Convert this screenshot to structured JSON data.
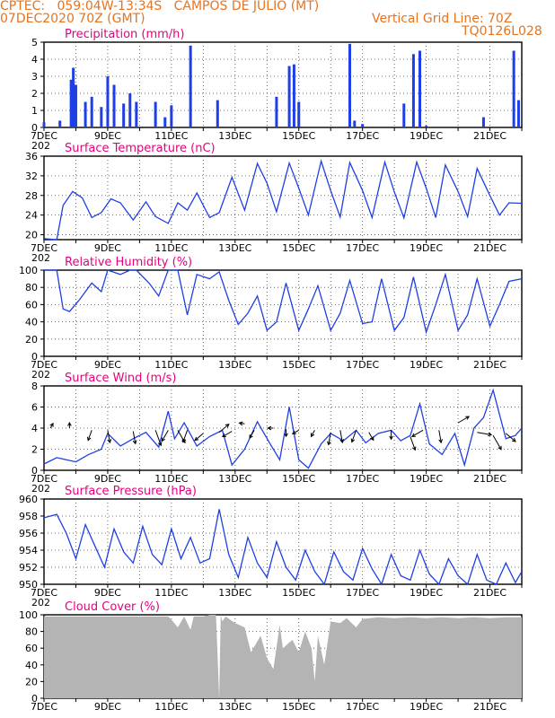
{
  "header": {
    "line1": "CPTEC:   059:04W-13:34S   CAMPOS DE JULIO (MT)",
    "line2": "07DEC2020 70Z (GMT)",
    "grid_note": "Vertical Grid Line: 70Z",
    "code": "TQ0126L028"
  },
  "colors": {
    "header": "#e8731c",
    "title": "#e6007e",
    "series": "#1f3fe6",
    "cloud": "#b4b4b4",
    "axis": "#000000"
  },
  "x_tick_labels": [
    "7DEC",
    "9DEC",
    "11DEC",
    "13DEC",
    "15DEC",
    "17DEC",
    "19DEC",
    "21DEC"
  ],
  "x_range_days": [
    7,
    22
  ],
  "cut_label": "202",
  "chart_data": [
    {
      "type": "bar",
      "title": "Precipitation (mm/h)",
      "ylim": [
        0,
        5
      ],
      "yticks": [
        0,
        1,
        2,
        3,
        4,
        5
      ],
      "x": [
        7.0,
        7.5,
        7.85,
        7.92,
        8.0,
        8.3,
        8.5,
        8.8,
        9.0,
        9.2,
        9.5,
        9.7,
        9.9,
        10.5,
        10.8,
        11.0,
        11.6,
        12.45,
        14.3,
        14.7,
        14.85,
        15.0,
        16.6,
        16.75,
        17.0,
        18.3,
        18.6,
        18.8,
        19.0,
        20.8,
        21.75,
        21.9
      ],
      "values": [
        0.3,
        0.4,
        2.8,
        3.5,
        2.5,
        1.5,
        1.8,
        1.2,
        3.0,
        2.5,
        1.4,
        2.0,
        1.5,
        1.5,
        0.6,
        1.3,
        4.8,
        1.6,
        1.8,
        3.6,
        3.7,
        1.5,
        4.9,
        0.4,
        0.2,
        1.4,
        4.3,
        4.5,
        0.1,
        0.6,
        4.5,
        1.6
      ]
    },
    {
      "type": "line",
      "title": "Surface Temperature (nC)",
      "ylim": [
        19,
        36
      ],
      "yticks": [
        20,
        24,
        28,
        32,
        36
      ],
      "x": [
        7.0,
        7.4,
        7.6,
        7.9,
        8.2,
        8.5,
        8.8,
        9.1,
        9.4,
        9.8,
        10.2,
        10.5,
        10.9,
        11.2,
        11.5,
        11.8,
        12.2,
        12.5,
        12.9,
        13.3,
        13.7,
        14.0,
        14.3,
        14.7,
        15.0,
        15.3,
        15.7,
        16.0,
        16.3,
        16.6,
        17.0,
        17.3,
        17.7,
        18.0,
        18.3,
        18.7,
        19.0,
        19.3,
        19.6,
        20.0,
        20.3,
        20.6,
        21.0,
        21.3,
        21.6,
        22.0
      ],
      "values": [
        19.2,
        19.0,
        26.0,
        28.8,
        27.5,
        23.5,
        24.5,
        27.3,
        26.5,
        23.0,
        26.7,
        23.7,
        22.3,
        26.5,
        25.0,
        28.5,
        23.5,
        24.5,
        31.7,
        25.0,
        34.5,
        30.5,
        24.7,
        34.6,
        29.5,
        24.0,
        35.0,
        29.0,
        23.6,
        34.7,
        29.0,
        23.5,
        34.8,
        28.7,
        23.4,
        34.8,
        29.5,
        23.5,
        34.2,
        28.8,
        23.7,
        33.5,
        28.0,
        24.0,
        26.5,
        26.4
      ]
    },
    {
      "type": "line",
      "title": "Relative Humidity (%)",
      "ylim": [
        0,
        100
      ],
      "yticks": [
        0,
        20,
        40,
        60,
        80,
        100
      ],
      "x": [
        7.0,
        7.4,
        7.6,
        7.8,
        8.1,
        8.5,
        8.8,
        9.0,
        9.4,
        9.7,
        9.9,
        10.3,
        10.6,
        10.9,
        11.2,
        11.5,
        11.8,
        12.2,
        12.5,
        12.8,
        13.1,
        13.4,
        13.7,
        14.0,
        14.3,
        14.6,
        15.0,
        15.3,
        15.6,
        16.0,
        16.3,
        16.6,
        17.0,
        17.3,
        17.6,
        18.0,
        18.3,
        18.6,
        19.0,
        19.3,
        19.6,
        20.0,
        20.3,
        20.6,
        21.0,
        21.3,
        21.6,
        22.0
      ],
      "values": [
        100,
        100,
        55,
        52,
        65,
        85,
        75,
        100,
        95,
        100,
        100,
        85,
        70,
        100,
        100,
        48,
        95,
        90,
        98,
        65,
        37,
        50,
        70,
        30,
        40,
        85,
        30,
        55,
        82,
        30,
        50,
        88,
        38,
        40,
        90,
        30,
        45,
        92,
        28,
        60,
        95,
        30,
        48,
        90,
        35,
        60,
        87,
        90
      ]
    },
    {
      "type": "line",
      "title": "Surface Wind (m/s)",
      "ylim": [
        0,
        8
      ],
      "yticks": [
        0,
        2,
        4,
        6,
        8
      ],
      "x": [
        7.0,
        7.4,
        7.7,
        8.0,
        8.4,
        8.8,
        9.0,
        9.4,
        9.8,
        10.2,
        10.6,
        10.9,
        11.1,
        11.4,
        11.8,
        12.2,
        12.6,
        12.9,
        13.3,
        13.7,
        14.1,
        14.4,
        14.7,
        15.0,
        15.3,
        15.7,
        16.0,
        16.4,
        16.8,
        17.1,
        17.5,
        17.9,
        18.2,
        18.5,
        18.8,
        19.1,
        19.5,
        19.9,
        20.2,
        20.5,
        20.8,
        21.1,
        21.5,
        21.8,
        22.0
      ],
      "values": [
        0.6,
        1.2,
        1.0,
        0.8,
        1.5,
        2.0,
        3.5,
        2.3,
        3.0,
        3.6,
        2.2,
        5.6,
        3.0,
        4.5,
        2.3,
        3.2,
        3.8,
        0.5,
        2.0,
        4.6,
        2.5,
        1.0,
        6.0,
        1.0,
        0.2,
        2.5,
        3.5,
        2.8,
        3.8,
        2.6,
        3.5,
        3.8,
        2.8,
        3.3,
        6.3,
        2.5,
        1.5,
        3.5,
        0.5,
        4.0,
        5.0,
        7.6,
        3.0,
        3.3,
        4.0
      ],
      "vectors": [
        {
          "x": 7.2,
          "y": 4.0,
          "ang": -60,
          "len": 6
        },
        {
          "x": 7.8,
          "y": 4.0,
          "ang": -90,
          "len": 6
        },
        {
          "x": 8.5,
          "y": 3.8,
          "ang": 110,
          "len": 12
        },
        {
          "x": 9.0,
          "y": 3.8,
          "ang": 80,
          "len": 14
        },
        {
          "x": 9.8,
          "y": 3.7,
          "ang": 80,
          "len": 14
        },
        {
          "x": 10.5,
          "y": 3.8,
          "ang": 70,
          "len": 18
        },
        {
          "x": 10.9,
          "y": 3.8,
          "ang": 120,
          "len": 14
        },
        {
          "x": 11.2,
          "y": 3.8,
          "ang": 60,
          "len": 16
        },
        {
          "x": 11.5,
          "y": 3.8,
          "ang": 110,
          "len": 14
        },
        {
          "x": 12.0,
          "y": 3.5,
          "ang": 140,
          "len": 12
        },
        {
          "x": 12.5,
          "y": 3.6,
          "ang": -40,
          "len": 14
        },
        {
          "x": 12.9,
          "y": 3.7,
          "ang": 150,
          "len": 12
        },
        {
          "x": 13.3,
          "y": 4.4,
          "ang": -170,
          "len": 6
        },
        {
          "x": 13.6,
          "y": 3.8,
          "ang": 120,
          "len": 10
        },
        {
          "x": 14.2,
          "y": 4.0,
          "ang": 180,
          "len": 6
        },
        {
          "x": 14.6,
          "y": 3.9,
          "ang": 90,
          "len": 8
        },
        {
          "x": 15.0,
          "y": 3.8,
          "ang": 150,
          "len": 8
        },
        {
          "x": 15.5,
          "y": 3.8,
          "ang": 120,
          "len": 8
        },
        {
          "x": 16.0,
          "y": 3.6,
          "ang": 100,
          "len": 14
        },
        {
          "x": 16.3,
          "y": 3.8,
          "ang": 80,
          "len": 14
        },
        {
          "x": 16.8,
          "y": 3.8,
          "ang": 110,
          "len": 14
        },
        {
          "x": 17.2,
          "y": 3.6,
          "ang": 60,
          "len": 10
        },
        {
          "x": 17.9,
          "y": 3.8,
          "ang": 90,
          "len": 10
        },
        {
          "x": 18.5,
          "y": 3.2,
          "ang": 70,
          "len": 16
        },
        {
          "x": 18.9,
          "y": 3.8,
          "ang": 150,
          "len": 14
        },
        {
          "x": 19.4,
          "y": 3.8,
          "ang": 80,
          "len": 14
        },
        {
          "x": 20.0,
          "y": 4.5,
          "ang": -30,
          "len": 14
        },
        {
          "x": 20.6,
          "y": 3.6,
          "ang": 10,
          "len": 16
        },
        {
          "x": 21.1,
          "y": 3.3,
          "ang": 60,
          "len": 18
        },
        {
          "x": 21.5,
          "y": 3.5,
          "ang": 40,
          "len": 14
        }
      ]
    },
    {
      "type": "line",
      "title": "Surface Pressure (hPa)",
      "ylim": [
        950,
        960
      ],
      "yticks": [
        950,
        952,
        954,
        956,
        958,
        960
      ],
      "x": [
        7.0,
        7.4,
        7.7,
        8.0,
        8.3,
        8.6,
        8.9,
        9.2,
        9.5,
        9.8,
        10.1,
        10.4,
        10.7,
        11.0,
        11.3,
        11.6,
        11.9,
        12.2,
        12.5,
        12.8,
        13.1,
        13.4,
        13.7,
        14.0,
        14.3,
        14.6,
        14.9,
        15.2,
        15.5,
        15.8,
        16.1,
        16.4,
        16.7,
        17.0,
        17.3,
        17.6,
        17.9,
        18.2,
        18.5,
        18.8,
        19.1,
        19.4,
        19.7,
        20.0,
        20.3,
        20.6,
        20.9,
        21.2,
        21.5,
        21.8,
        22.0
      ],
      "values": [
        957.8,
        958.2,
        956.0,
        953.0,
        957.0,
        954.5,
        952.0,
        956.5,
        953.8,
        952.5,
        956.8,
        953.5,
        952.3,
        956.5,
        953.0,
        955.5,
        952.5,
        953.0,
        958.8,
        953.5,
        950.8,
        955.5,
        952.5,
        950.8,
        955.0,
        952.0,
        950.5,
        954.0,
        951.5,
        949.8,
        953.8,
        951.5,
        950.5,
        954.2,
        951.8,
        950.0,
        953.5,
        951.0,
        950.5,
        954.0,
        951.2,
        949.9,
        953.0,
        951.0,
        950.0,
        953.5,
        950.5,
        950.0,
        952.5,
        950.2,
        951.5
      ]
    },
    {
      "type": "area",
      "title": "Cloud Cover (%)",
      "ylim": [
        0,
        100
      ],
      "yticks": [
        0,
        20,
        40,
        60,
        80,
        100
      ],
      "x": [
        7.0,
        8.0,
        9.0,
        10.0,
        10.9,
        11.05,
        11.2,
        11.4,
        11.6,
        11.7,
        12.0,
        12.2,
        12.4,
        12.5,
        12.55,
        12.6,
        12.7,
        13.0,
        13.3,
        13.5,
        13.8,
        14.0,
        14.2,
        14.4,
        14.5,
        14.8,
        15.0,
        15.2,
        15.4,
        15.5,
        15.6,
        15.8,
        16.0,
        16.3,
        16.5,
        16.8,
        17.0,
        17.5,
        18.0,
        18.5,
        19.0,
        19.5,
        20.0,
        20.5,
        21.0,
        21.5,
        22.0
      ],
      "values": [
        98,
        98,
        98,
        98,
        98,
        92,
        85,
        98,
        82,
        98,
        98,
        100,
        100,
        0,
        100,
        92,
        98,
        90,
        85,
        55,
        75,
        48,
        35,
        88,
        60,
        70,
        55,
        80,
        60,
        20,
        75,
        40,
        92,
        90,
        96,
        85,
        95,
        97,
        96,
        97,
        96,
        97,
        96,
        97,
        96,
        97,
        97
      ]
    }
  ]
}
